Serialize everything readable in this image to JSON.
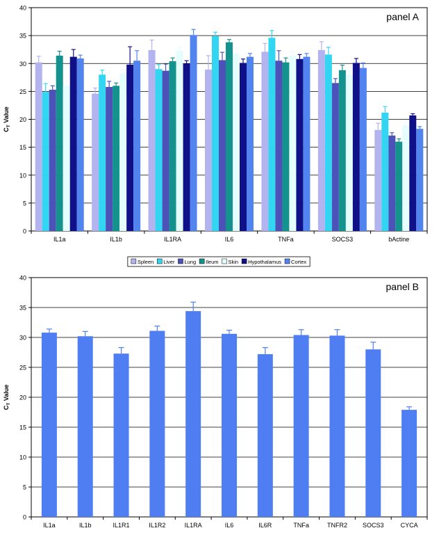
{
  "chart_data": [
    {
      "type": "bar",
      "annotation": "panel A",
      "ylabel": "C",
      "ylabel_sub": "T",
      "ylabel_rest": " Value",
      "ylim": [
        0,
        40
      ],
      "yticks": [
        0,
        5,
        10,
        15,
        20,
        25,
        30,
        35,
        40
      ],
      "grid": true,
      "legend": "bottom",
      "categories": [
        "IL1a",
        "IL1b",
        "IL1RA",
        "IL6",
        "TNFa",
        "SOCS3",
        "bActine"
      ],
      "series": [
        {
          "name": "Spleen",
          "color": "#b3b3f0",
          "values": [
            30.2,
            24.6,
            32.4,
            28.9,
            32.1,
            32.4,
            18.1
          ],
          "errors": [
            1.1,
            1.0,
            1.8,
            2.5,
            1.5,
            1.5,
            1.2
          ]
        },
        {
          "name": "Liver",
          "color": "#33d6f2",
          "values": [
            24.9,
            28.0,
            29.0,
            34.9,
            34.6,
            31.6,
            21.2
          ],
          "errors": [
            1.5,
            0.8,
            0.8,
            0.7,
            1.3,
            1.3,
            1.1
          ]
        },
        {
          "name": "Lung",
          "color": "#4c52b8",
          "values": [
            25.3,
            25.8,
            28.7,
            30.6,
            30.5,
            26.5,
            17.1
          ],
          "errors": [
            0.7,
            1.0,
            1.2,
            1.4,
            1.8,
            0.8,
            0.5
          ]
        },
        {
          "name": "Ileum",
          "color": "#13928e",
          "values": [
            31.4,
            26.0,
            30.4,
            33.8,
            30.2,
            28.8,
            16.0
          ],
          "errors": [
            0.8,
            0.5,
            0.6,
            0.5,
            0.8,
            0.9,
            0.5
          ]
        },
        {
          "name": "Skin",
          "color": "#e6fdfd",
          "values": [
            26.0,
            28.2,
            32.3,
            31.8,
            31.4,
            28.0,
            18.9
          ],
          "errors": [
            0.8,
            0.7,
            0.6,
            1.0,
            0.8,
            0.7,
            0.9
          ]
        },
        {
          "name": "Hypothalamus",
          "color": "#101088",
          "values": [
            31.2,
            29.8,
            30.0,
            30.1,
            30.8,
            30.1,
            20.7
          ],
          "errors": [
            1.3,
            3.2,
            0.5,
            0.7,
            0.8,
            0.8,
            0.3
          ]
        },
        {
          "name": "Cortex",
          "color": "#5284f0",
          "values": [
            30.9,
            30.5,
            35.1,
            31.2,
            31.2,
            29.2,
            18.3
          ],
          "errors": [
            0.6,
            1.8,
            1.0,
            0.6,
            0.6,
            0.9,
            0.4
          ]
        }
      ]
    },
    {
      "type": "bar",
      "annotation": "panel B",
      "ylabel": "C",
      "ylabel_sub": "T",
      "ylabel_rest": " Value",
      "ylim": [
        0,
        40
      ],
      "yticks": [
        0,
        5,
        10,
        15,
        20,
        25,
        30,
        35,
        40
      ],
      "grid": true,
      "categories": [
        "IL1a",
        "IL1b",
        "IL1R1",
        "IL1R2",
        "IL1RA",
        "IL6",
        "IL6R",
        "TNFa",
        "TNFR2",
        "SOCS3",
        "CYCA"
      ],
      "series": [
        {
          "color": "#4f7ef2",
          "values": [
            30.8,
            30.2,
            27.3,
            31.1,
            34.4,
            30.6,
            27.2,
            30.4,
            30.3,
            28.0,
            17.9
          ],
          "errors": [
            0.6,
            0.8,
            1.0,
            0.8,
            1.5,
            0.6,
            1.1,
            0.9,
            1.0,
            1.2,
            0.5
          ]
        }
      ]
    }
  ]
}
